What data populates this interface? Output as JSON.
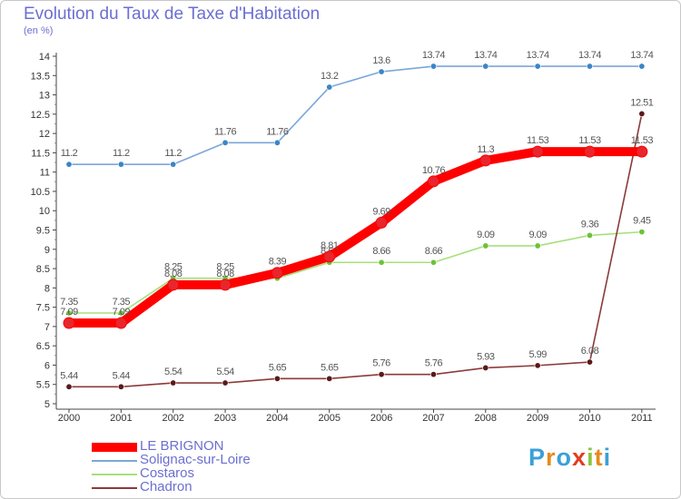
{
  "header": {
    "title": "Evolution du Taux de Taxe d'Habitation",
    "unit": "(en %)"
  },
  "logo": {
    "letters": [
      "P",
      "r",
      "o",
      "x",
      "i",
      "t",
      "i"
    ],
    "colors": [
      "#3aa0d8",
      "#e58a1f",
      "#3aa0d8",
      "#e53b1f",
      "#8cc63f",
      "#e58a1f",
      "#3aa0d8"
    ]
  },
  "chart_data": {
    "type": "line",
    "title": "Evolution du Taux de Taxe d'Habitation",
    "ylabel": "(en %)",
    "x": [
      "2000",
      "2001",
      "2002",
      "2003",
      "2004",
      "2005",
      "2006",
      "2007",
      "2008",
      "2009",
      "2010",
      "2011"
    ],
    "ylim": [
      5,
      14
    ],
    "yticks": [
      "5",
      "5.5",
      "6",
      "6.5",
      "7",
      "7.5",
      "8",
      "8.5",
      "9",
      "9.5",
      "10",
      "10.5",
      "11",
      "11.5",
      "12",
      "12.5",
      "13",
      "13.5",
      "14"
    ],
    "grid": false,
    "legend_position": "bottom-left",
    "series": [
      {
        "name": "LE BRIGNON",
        "color": "#ff0000",
        "marker": "#e8262d",
        "width": "thick",
        "values": [
          7.09,
          7.09,
          8.08,
          8.08,
          8.39,
          8.81,
          9.69,
          10.76,
          11.3,
          11.53,
          11.53,
          11.53
        ],
        "labels": [
          "7.09",
          "7.09",
          "8.08",
          "8.08",
          "8.39",
          "8.81",
          "9.69",
          "10.76",
          "11.3",
          "11.53",
          "11.53",
          "11.53"
        ]
      },
      {
        "name": "Solignac-sur-Loire",
        "color": "#7ba7d8",
        "marker": "#3a86c8",
        "width": "thin",
        "values": [
          11.2,
          11.2,
          11.2,
          11.76,
          11.76,
          13.2,
          13.6,
          13.74,
          13.74,
          13.74,
          13.74,
          13.74
        ],
        "labels": [
          "11.2",
          "11.2",
          "11.2",
          "11.76",
          "11.76",
          "13.2",
          "13.6",
          "13.74",
          "13.74",
          "13.74",
          "13.74",
          "13.74"
        ]
      },
      {
        "name": "Costaros",
        "color": "#a6e07a",
        "marker": "#6cc23a",
        "width": "thin",
        "values": [
          7.35,
          7.35,
          8.25,
          8.25,
          8.25,
          8.66,
          8.66,
          8.66,
          9.09,
          9.09,
          9.36,
          9.45
        ],
        "labels": [
          "7.35",
          "7.35",
          "8.25",
          "8.25",
          "",
          "8.66",
          "8.66",
          "8.66",
          "9.09",
          "9.09",
          "9.36",
          "9.45"
        ]
      },
      {
        "name": "Chadron",
        "color": "#8b3a3a",
        "marker": "#5a1a1a",
        "width": "thin",
        "values": [
          5.44,
          5.44,
          5.54,
          5.54,
          5.65,
          5.65,
          5.76,
          5.76,
          5.93,
          5.99,
          6.08,
          12.51
        ],
        "labels": [
          "5.44",
          "5.44",
          "5.54",
          "5.54",
          "5.65",
          "5.65",
          "5.76",
          "5.76",
          "5.93",
          "5.99",
          "6.08",
          "12.51"
        ]
      }
    ]
  }
}
